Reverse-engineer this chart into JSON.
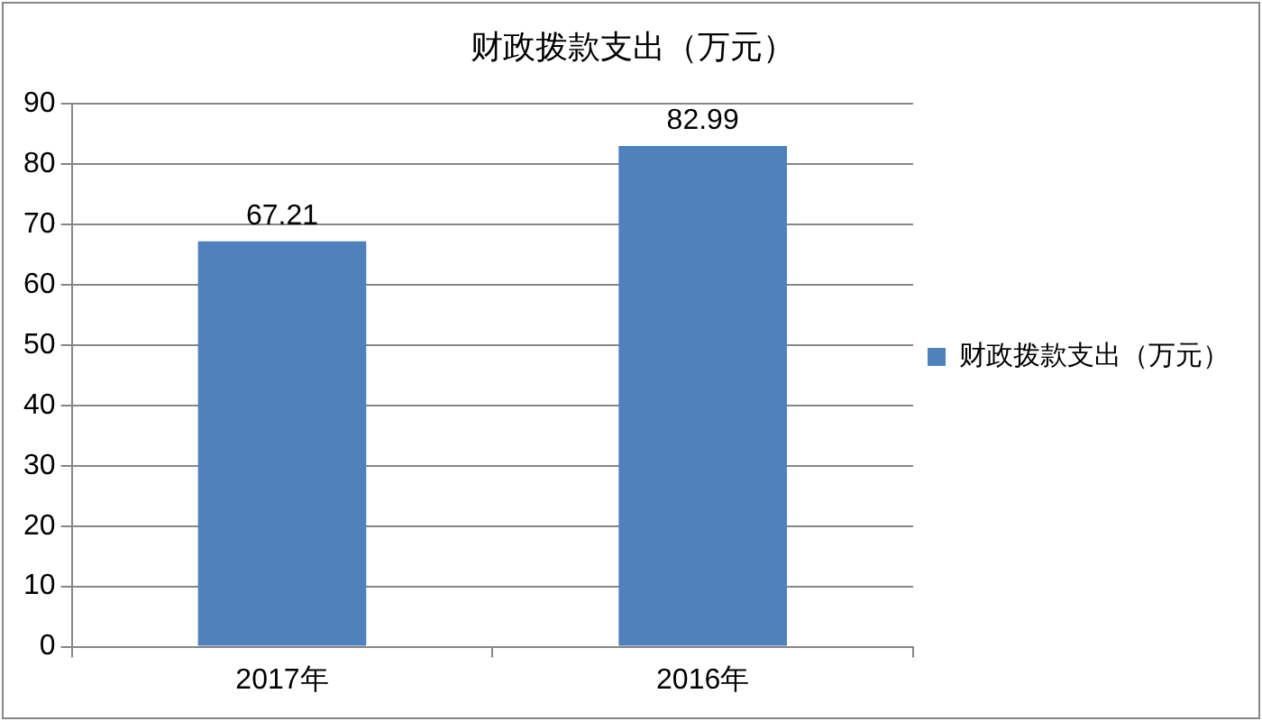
{
  "chart_data": {
    "type": "bar",
    "title": "财政拨款支出（万元）",
    "categories": [
      "2017年",
      "2016年"
    ],
    "series": [
      {
        "name": "财政拨款支出（万元）",
        "color": "#4f81bd",
        "values": [
          67.21,
          82.99
        ]
      }
    ],
    "ylim": [
      0,
      90
    ],
    "yticks": [
      0,
      10,
      20,
      30,
      40,
      50,
      60,
      70,
      80,
      90
    ],
    "grid": "y",
    "legend": "right",
    "data_labels": true
  }
}
